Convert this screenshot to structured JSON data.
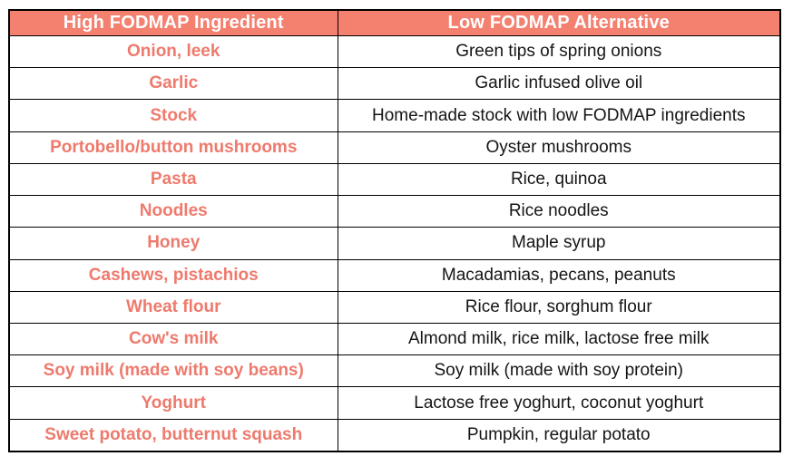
{
  "table": {
    "headers": [
      {
        "label": "High FODMAP Ingredient"
      },
      {
        "label": "Low FODMAP Alternative"
      }
    ],
    "rows": [
      {
        "high": "Onion, leek",
        "low": "Green tips of spring onions"
      },
      {
        "high": "Garlic",
        "low": "Garlic infused olive oil"
      },
      {
        "high": "Stock",
        "low": "Home-made stock with low FODMAP ingredients"
      },
      {
        "high": "Portobello/button mushrooms",
        "low": "Oyster mushrooms"
      },
      {
        "high": "Pasta",
        "low": "Rice, quinoa"
      },
      {
        "high": "Noodles",
        "low": "Rice noodles"
      },
      {
        "high": "Honey",
        "low": "Maple syrup"
      },
      {
        "high": "Cashews, pistachios",
        "low": "Macadamias, pecans, peanuts"
      },
      {
        "high": "Wheat flour",
        "low": "Rice flour, sorghum flour"
      },
      {
        "high": "Cow's milk",
        "low": "Almond milk, rice milk, lactose free milk"
      },
      {
        "high": "Soy milk (made with soy beans)",
        "low": "Soy milk (made with soy protein)"
      },
      {
        "high": "Yoghurt",
        "low": "Lactose free yoghurt, coconut yoghurt"
      },
      {
        "high": "Sweet potato, butternut squash",
        "low": "Pumpkin, regular potato"
      }
    ]
  },
  "colors": {
    "header_bg": "#F4806F",
    "header_text": "#FFFFFF",
    "high_text": "#EE7A6D",
    "low_text": "#151515",
    "border": "#000000"
  }
}
